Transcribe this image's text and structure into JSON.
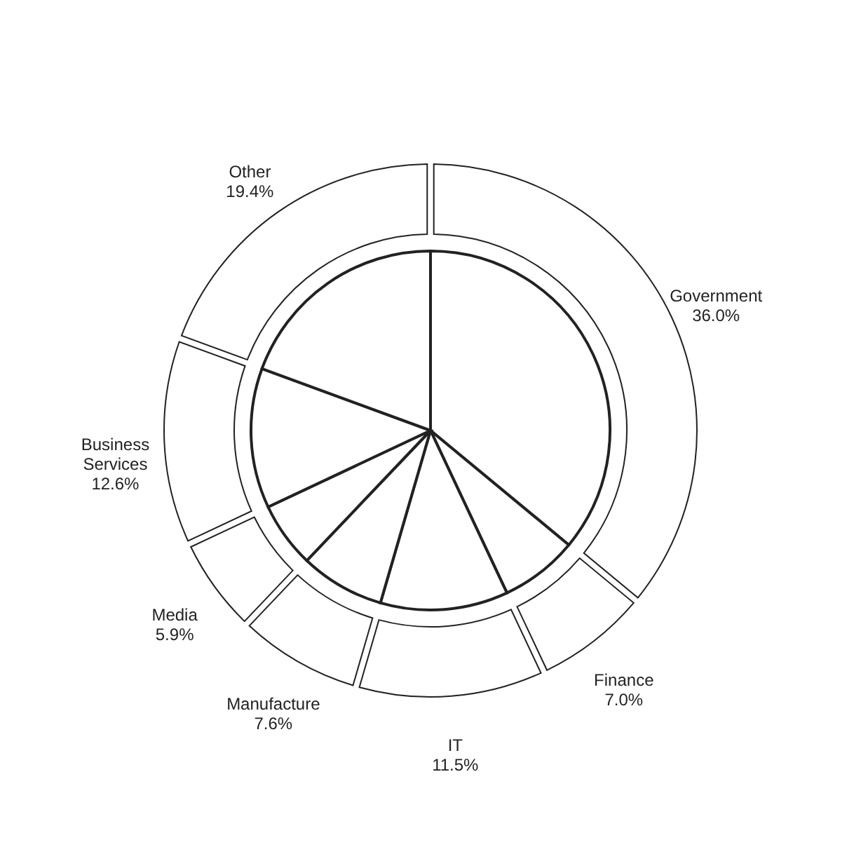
{
  "chart_data": {
    "type": "donut",
    "categories": [
      "Government",
      "Finance",
      "IT",
      "Manufacture",
      "Media",
      "Business Services",
      "Other"
    ],
    "colors": [
      "#ffffff",
      "#ffffff",
      "#ffffff",
      "#ffffff",
      "#ffffff",
      "#ffffff",
      "#ffffff"
    ],
    "series": [
      {
        "values": [
          36.0,
          7.0,
          11.5,
          7.6,
          5.9,
          12.6,
          19.4
        ],
        "value_labels": [
          "36.0%",
          "7.0%",
          "11.5%",
          "7.6%",
          "5.9%",
          "12.6%",
          "19.4%"
        ]
      },
      {
        "values": [
          36.0,
          7.0,
          11.5,
          7.6,
          5.9,
          12.6,
          19.4
        ]
      }
    ],
    "legend": false
  }
}
